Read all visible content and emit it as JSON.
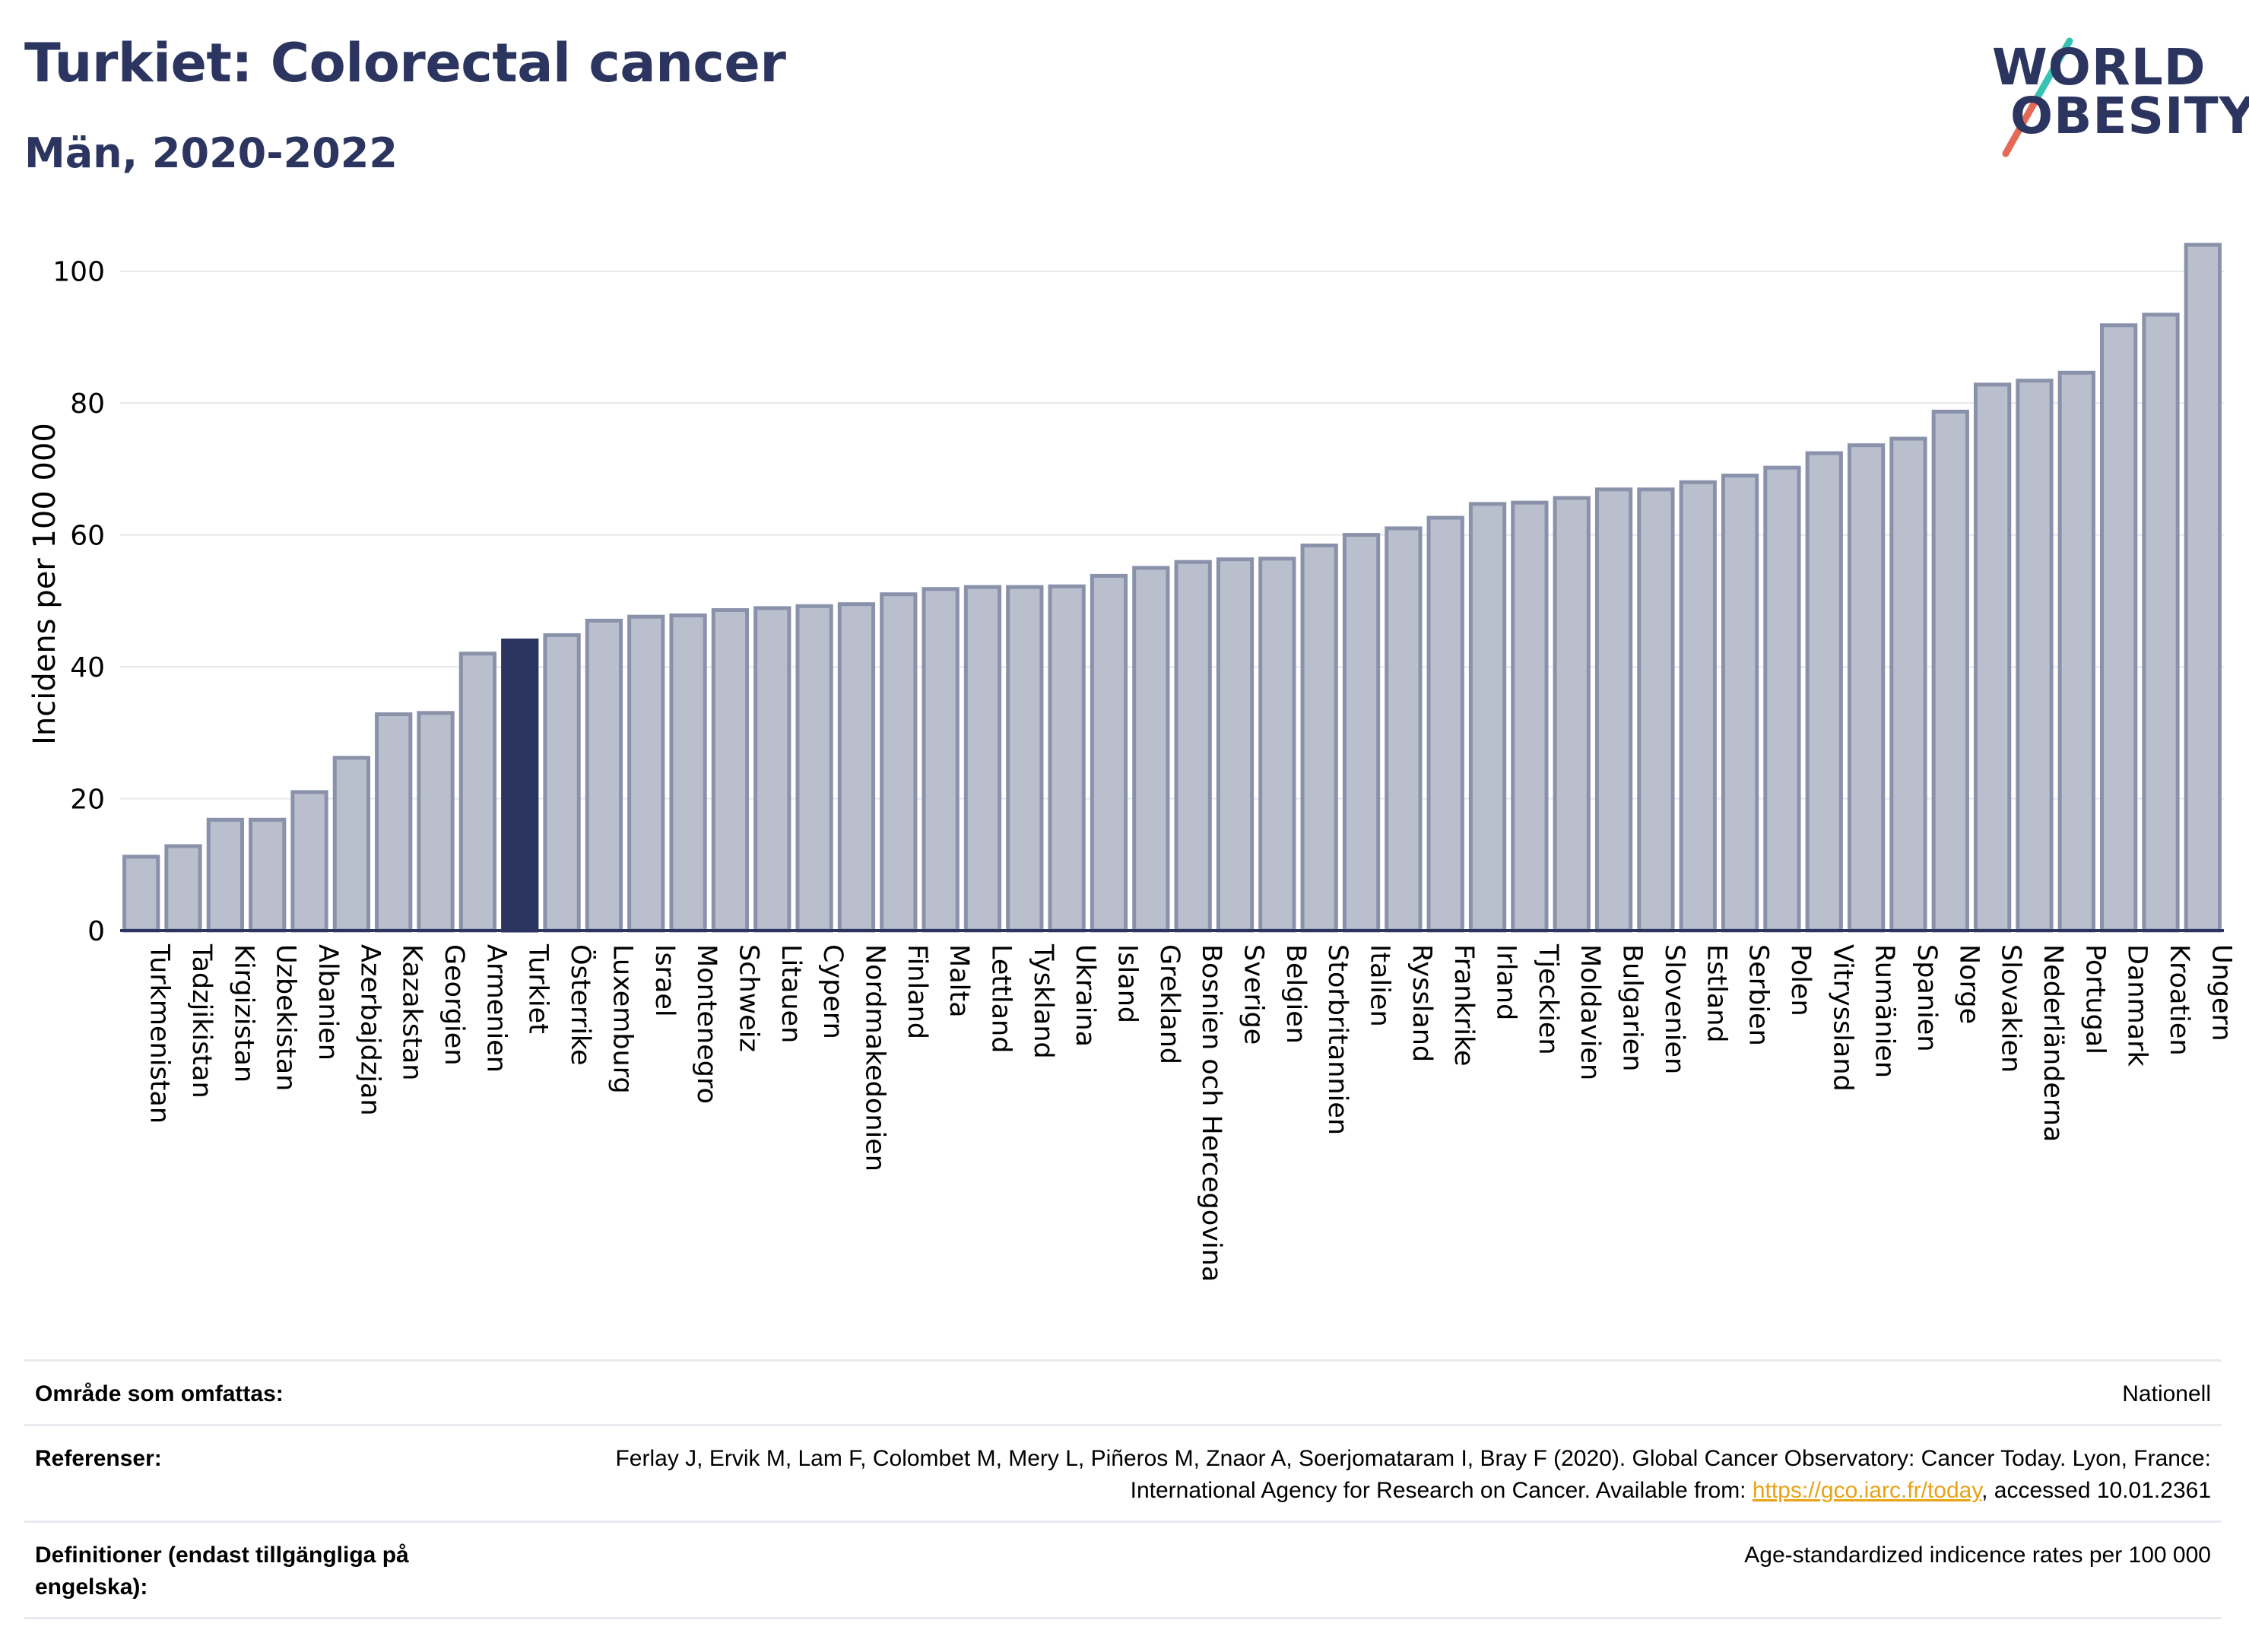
{
  "title": "Turkiet: Colorectal cancer",
  "subtitle": "Män, 2020-2022",
  "logo": {
    "line1": "WORLD",
    "line2": "OBESITY"
  },
  "colors": {
    "bar": "#b9bfcd",
    "bar_stroke": "#8a92ab",
    "highlight": "#2b3560",
    "grid": "#e6e8ee",
    "text": "#2b3560",
    "link": "#e8a317"
  },
  "chart_data": {
    "type": "bar",
    "ylabel": "Incidens per 100 000",
    "ylim": [
      0,
      104
    ],
    "yticks": [
      0,
      20,
      40,
      60,
      80,
      100
    ],
    "grid": true,
    "highlight": "Turkiet",
    "categories": [
      "Turkmenistan",
      "Tadzjikistan",
      "Kirgizistan",
      "Uzbekistan",
      "Albanien",
      "Azerbajdzjan",
      "Kazakstan",
      "Georgien",
      "Armenien",
      "Turkiet",
      "Österrike",
      "Luxemburg",
      "Israel",
      "Montenegro",
      "Schweiz",
      "Litauen",
      "Cypern",
      "Nordmakedonien",
      "Finland",
      "Malta",
      "Lettland",
      "Tyskland",
      "Ukraina",
      "Island",
      "Grekland",
      "Bosnien och Hercegovina",
      "Sverige",
      "Belgien",
      "Storbritannien",
      "Italien",
      "Ryssland",
      "Frankrike",
      "Irland",
      "Tjeckien",
      "Moldavien",
      "Bulgarien",
      "Slovenien",
      "Estland",
      "Serbien",
      "Polen",
      "Vitryssland",
      "Rumänien",
      "Spanien",
      "Norge",
      "Slovakien",
      "Nederländerna",
      "Portugal",
      "Danmark",
      "Kroatien",
      "Ungern"
    ],
    "values": [
      11.2,
      12.8,
      16.8,
      16.8,
      21.0,
      26.2,
      32.8,
      33.0,
      42.0,
      44.0,
      44.8,
      47.0,
      47.6,
      47.8,
      48.6,
      48.9,
      49.2,
      49.5,
      51.0,
      51.8,
      52.1,
      52.1,
      52.2,
      53.8,
      55.0,
      55.9,
      56.3,
      56.4,
      58.4,
      60.0,
      61.0,
      62.6,
      64.7,
      64.9,
      65.6,
      66.9,
      66.9,
      68.0,
      69.0,
      70.2,
      72.4,
      73.6,
      74.6,
      78.7,
      82.8,
      83.4,
      84.6,
      91.8,
      93.4,
      104.0
    ]
  },
  "footer": {
    "rows": [
      {
        "label": "Område som omfattas:",
        "value": "Nationell"
      },
      {
        "label": "Referenser:",
        "value_pre": "Ferlay J, Ervik M, Lam F, Colombet M, Mery L, Piñeros M, Znaor A, Soerjomataram I, Bray F (2020). Global Cancer Observatory: Cancer Today. Lyon, France: International Agency for Research on Cancer. Available from: ",
        "link": "https://gco.iarc.fr/today",
        "value_post": ", accessed 10.01.2361"
      },
      {
        "label": "Definitioner (endast tillgängliga på engelska):",
        "value": "Age-standardized indicence rates per 100 000"
      }
    ]
  }
}
